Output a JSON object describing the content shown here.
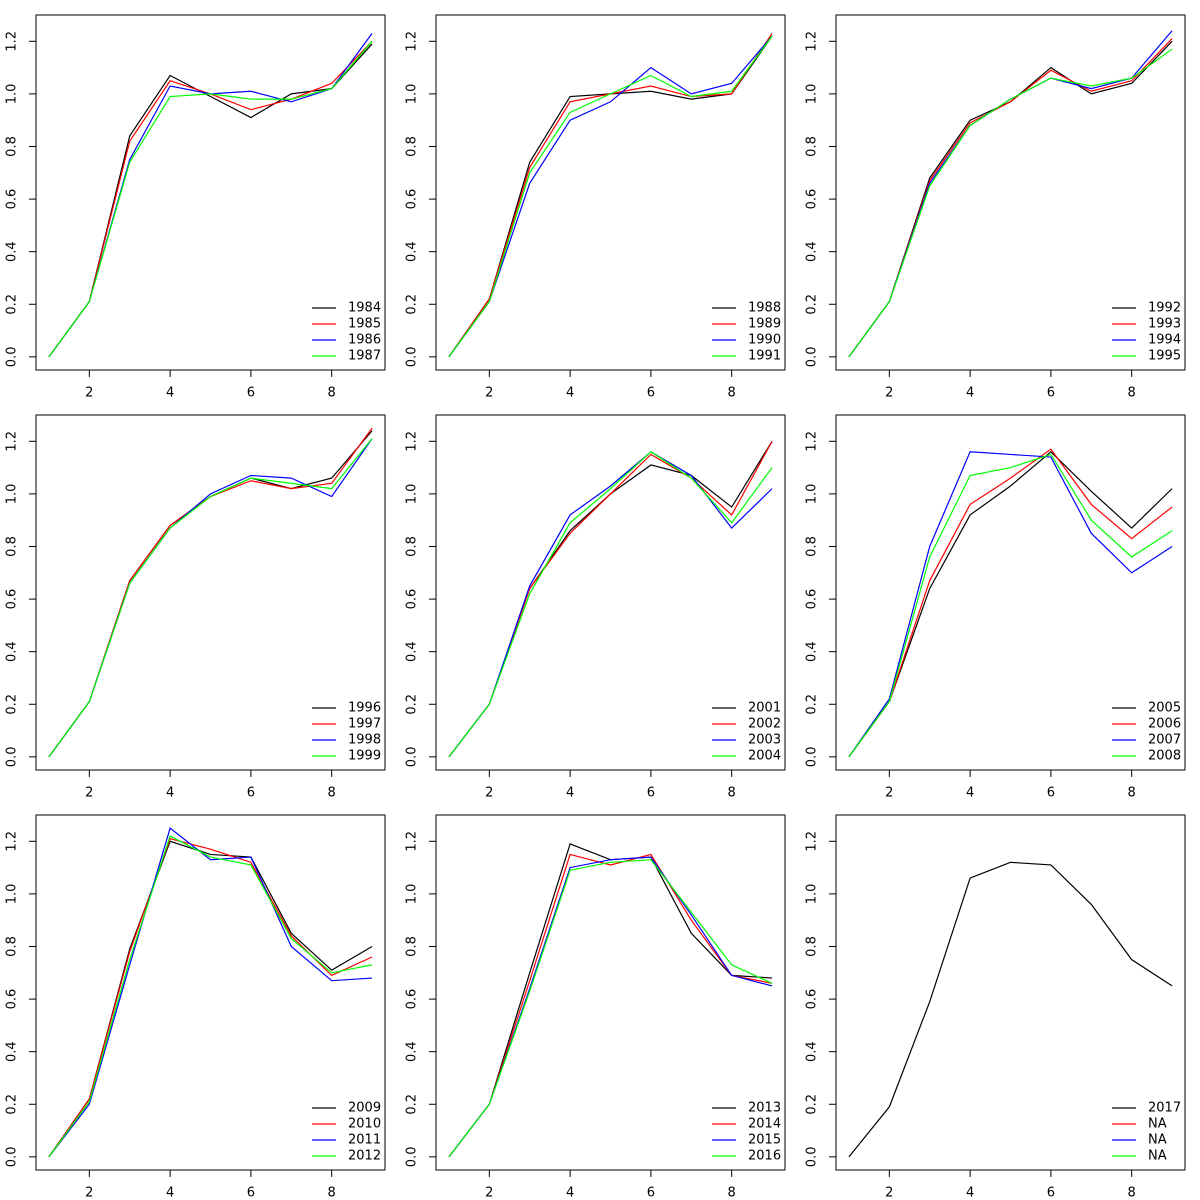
{
  "chart_data": [
    {
      "type": "line",
      "x": [
        1,
        2,
        3,
        4,
        5,
        6,
        7,
        8,
        9
      ],
      "xlim": [
        0.68,
        9.32
      ],
      "xticks": [
        2,
        4,
        6,
        8
      ],
      "ylim": [
        -0.05,
        1.3
      ],
      "yticks": [
        {
          "value": 0,
          "label": "0.0"
        },
        0.2,
        0.4,
        0.6,
        0.8,
        {
          "value": 1,
          "label": "1.0"
        },
        1.2
      ],
      "legend": "bottom-right",
      "series": [
        {
          "name": "1984",
          "color": "#000000",
          "values": [
            0,
            0.21,
            0.84,
            1.07,
            0.99,
            0.91,
            1.0,
            1.02,
            1.19
          ]
        },
        {
          "name": "1985",
          "color": "#ff0000",
          "values": [
            0,
            0.21,
            0.82,
            1.05,
            1.0,
            0.94,
            0.98,
            1.04,
            1.2
          ]
        },
        {
          "name": "1986",
          "color": "#0000ff",
          "values": [
            0,
            0.21,
            0.75,
            1.03,
            1.0,
            1.01,
            0.97,
            1.02,
            1.23
          ]
        },
        {
          "name": "1987",
          "color": "#00ff00",
          "values": [
            0,
            0.21,
            0.74,
            0.99,
            1.0,
            0.98,
            0.98,
            1.02,
            1.2
          ]
        }
      ]
    },
    {
      "type": "line",
      "x": [
        1,
        2,
        3,
        4,
        5,
        6,
        7,
        8,
        9
      ],
      "xlim": [
        0.68,
        9.32
      ],
      "xticks": [
        2,
        4,
        6,
        8
      ],
      "ylim": [
        -0.05,
        1.3
      ],
      "yticks": [
        {
          "value": 0,
          "label": "0.0"
        },
        0.2,
        0.4,
        0.6,
        0.8,
        {
          "value": 1,
          "label": "1.0"
        },
        1.2
      ],
      "legend": "bottom-right",
      "series": [
        {
          "name": "1988",
          "color": "#000000",
          "values": [
            0,
            0.22,
            0.74,
            0.99,
            1.0,
            1.01,
            0.98,
            1.0,
            1.22
          ]
        },
        {
          "name": "1989",
          "color": "#ff0000",
          "values": [
            0,
            0.22,
            0.72,
            0.97,
            1.0,
            1.03,
            0.99,
            1.0,
            1.23
          ]
        },
        {
          "name": "1990",
          "color": "#0000ff",
          "values": [
            0,
            0.21,
            0.66,
            0.9,
            0.97,
            1.1,
            1.0,
            1.04,
            1.22
          ]
        },
        {
          "name": "1991",
          "color": "#00ff00",
          "values": [
            0,
            0.21,
            0.7,
            0.93,
            1.0,
            1.07,
            0.99,
            1.01,
            1.22
          ]
        }
      ]
    },
    {
      "type": "line",
      "x": [
        1,
        2,
        3,
        4,
        5,
        6,
        7,
        8,
        9
      ],
      "xlim": [
        0.68,
        9.32
      ],
      "xticks": [
        2,
        4,
        6,
        8
      ],
      "ylim": [
        -0.05,
        1.3
      ],
      "yticks": [
        {
          "value": 0,
          "label": "0.0"
        },
        0.2,
        0.4,
        0.6,
        0.8,
        {
          "value": 1,
          "label": "1.0"
        },
        1.2
      ],
      "legend": "bottom-right",
      "series": [
        {
          "name": "1992",
          "color": "#000000",
          "values": [
            0,
            0.21,
            0.68,
            0.9,
            0.97,
            1.1,
            1.0,
            1.04,
            1.2
          ]
        },
        {
          "name": "1993",
          "color": "#ff0000",
          "values": [
            0,
            0.21,
            0.67,
            0.89,
            0.97,
            1.09,
            1.01,
            1.05,
            1.21
          ]
        },
        {
          "name": "1994",
          "color": "#0000ff",
          "values": [
            0,
            0.21,
            0.66,
            0.88,
            0.98,
            1.06,
            1.02,
            1.06,
            1.24
          ]
        },
        {
          "name": "1995",
          "color": "#00ff00",
          "values": [
            0,
            0.21,
            0.65,
            0.88,
            0.98,
            1.06,
            1.03,
            1.06,
            1.17
          ]
        }
      ]
    },
    {
      "type": "line",
      "x": [
        1,
        2,
        3,
        4,
        5,
        6,
        7,
        8,
        9
      ],
      "xlim": [
        0.68,
        9.32
      ],
      "xticks": [
        2,
        4,
        6,
        8
      ],
      "ylim": [
        -0.05,
        1.3
      ],
      "yticks": [
        {
          "value": 0,
          "label": "0.0"
        },
        0.2,
        0.4,
        0.6,
        0.8,
        {
          "value": 1,
          "label": "1.0"
        },
        1.2
      ],
      "legend": "bottom-right",
      "series": [
        {
          "name": "1996",
          "color": "#000000",
          "values": [
            0,
            0.21,
            0.67,
            0.88,
            0.99,
            1.06,
            1.02,
            1.06,
            1.24
          ]
        },
        {
          "name": "1997",
          "color": "#ff0000",
          "values": [
            0,
            0.21,
            0.67,
            0.88,
            0.99,
            1.05,
            1.02,
            1.04,
            1.25
          ]
        },
        {
          "name": "1998",
          "color": "#0000ff",
          "values": [
            0,
            0.21,
            0.66,
            0.87,
            1.0,
            1.07,
            1.06,
            0.99,
            1.21
          ]
        },
        {
          "name": "1999",
          "color": "#00ff00",
          "values": [
            0,
            0.21,
            0.66,
            0.87,
            0.99,
            1.06,
            1.04,
            1.02,
            1.21
          ]
        }
      ]
    },
    {
      "type": "line",
      "x": [
        1,
        2,
        3,
        4,
        5,
        6,
        7,
        8,
        9
      ],
      "xlim": [
        0.68,
        9.32
      ],
      "xticks": [
        2,
        4,
        6,
        8
      ],
      "ylim": [
        -0.05,
        1.3
      ],
      "yticks": [
        {
          "value": 0,
          "label": "0.0"
        },
        0.2,
        0.4,
        0.6,
        0.8,
        {
          "value": 1,
          "label": "1.0"
        },
        1.2
      ],
      "legend": "bottom-right",
      "series": [
        {
          "name": "2001",
          "color": "#000000",
          "values": [
            0,
            0.2,
            0.64,
            0.86,
            1.0,
            1.11,
            1.07,
            0.95,
            1.2
          ]
        },
        {
          "name": "2002",
          "color": "#ff0000",
          "values": [
            0,
            0.2,
            0.64,
            0.85,
            1.0,
            1.15,
            1.06,
            0.92,
            1.2
          ]
        },
        {
          "name": "2003",
          "color": "#0000ff",
          "values": [
            0,
            0.2,
            0.65,
            0.92,
            1.03,
            1.16,
            1.07,
            0.87,
            1.02
          ]
        },
        {
          "name": "2004",
          "color": "#00ff00",
          "values": [
            0,
            0.2,
            0.62,
            0.89,
            1.02,
            1.16,
            1.06,
            0.89,
            1.1
          ]
        }
      ]
    },
    {
      "type": "line",
      "x": [
        1,
        2,
        3,
        4,
        5,
        6,
        7,
        8,
        9
      ],
      "xlim": [
        0.68,
        9.32
      ],
      "xticks": [
        2,
        4,
        6,
        8
      ],
      "ylim": [
        -0.05,
        1.3
      ],
      "yticks": [
        {
          "value": 0,
          "label": "0.0"
        },
        0.2,
        0.4,
        0.6,
        0.8,
        {
          "value": 1,
          "label": "1.0"
        },
        1.2
      ],
      "legend": "bottom-right",
      "series": [
        {
          "name": "2005",
          "color": "#000000",
          "values": [
            0,
            0.21,
            0.64,
            0.92,
            1.03,
            1.16,
            1.01,
            0.87,
            1.02
          ]
        },
        {
          "name": "2006",
          "color": "#ff0000",
          "values": [
            0,
            0.21,
            0.67,
            0.96,
            1.06,
            1.17,
            0.96,
            0.83,
            0.95
          ]
        },
        {
          "name": "2007",
          "color": "#0000ff",
          "values": [
            0,
            0.22,
            0.8,
            1.16,
            1.15,
            1.14,
            0.85,
            0.7,
            0.8
          ]
        },
        {
          "name": "2008",
          "color": "#00ff00",
          "values": [
            0,
            0.21,
            0.76,
            1.07,
            1.1,
            1.15,
            0.9,
            0.76,
            0.86
          ]
        }
      ]
    },
    {
      "type": "line",
      "x": [
        1,
        2,
        3,
        4,
        5,
        6,
        7,
        8,
        9
      ],
      "xlim": [
        0.68,
        9.32
      ],
      "xticks": [
        2,
        4,
        6,
        8
      ],
      "ylim": [
        -0.05,
        1.3
      ],
      "yticks": [
        {
          "value": 0,
          "label": "0.0"
        },
        0.2,
        0.4,
        0.6,
        0.8,
        {
          "value": 1,
          "label": "1.0"
        },
        1.2
      ],
      "legend": "bottom-right",
      "series": [
        {
          "name": "2009",
          "color": "#000000",
          "values": [
            0,
            0.22,
            0.79,
            1.2,
            1.15,
            1.14,
            0.85,
            0.71,
            0.8
          ]
        },
        {
          "name": "2010",
          "color": "#ff0000",
          "values": [
            0,
            0.22,
            0.78,
            1.21,
            1.17,
            1.12,
            0.84,
            0.69,
            0.76
          ]
        },
        {
          "name": "2011",
          "color": "#0000ff",
          "values": [
            0,
            0.2,
            0.73,
            1.25,
            1.13,
            1.14,
            0.8,
            0.67,
            0.68
          ]
        },
        {
          "name": "2012",
          "color": "#00ff00",
          "values": [
            0,
            0.21,
            0.75,
            1.22,
            1.14,
            1.11,
            0.83,
            0.7,
            0.73
          ]
        }
      ]
    },
    {
      "type": "line",
      "x": [
        1,
        2,
        3,
        4,
        5,
        6,
        7,
        8,
        9
      ],
      "xlim": [
        0.68,
        9.32
      ],
      "xticks": [
        2,
        4,
        6,
        8
      ],
      "ylim": [
        -0.05,
        1.3
      ],
      "yticks": [
        {
          "value": 0,
          "label": "0.0"
        },
        0.2,
        0.4,
        0.6,
        0.8,
        {
          "value": 1,
          "label": "1.0"
        },
        1.2
      ],
      "legend": "bottom-right",
      "series": [
        {
          "name": "2013",
          "color": "#000000",
          "values": [
            0,
            0.2,
            0.7,
            1.19,
            1.13,
            1.14,
            0.85,
            0.69,
            0.68
          ]
        },
        {
          "name": "2014",
          "color": "#ff0000",
          "values": [
            0,
            0.2,
            0.67,
            1.15,
            1.11,
            1.15,
            0.9,
            0.69,
            0.66
          ]
        },
        {
          "name": "2015",
          "color": "#0000ff",
          "values": [
            0,
            0.2,
            0.64,
            1.1,
            1.13,
            1.14,
            0.92,
            0.69,
            0.65
          ]
        },
        {
          "name": "2016",
          "color": "#00ff00",
          "values": [
            0,
            0.2,
            0.63,
            1.09,
            1.12,
            1.13,
            0.93,
            0.73,
            0.66
          ]
        }
      ]
    },
    {
      "type": "line",
      "x": [
        1,
        2,
        3,
        4,
        5,
        6,
        7,
        8,
        9
      ],
      "xlim": [
        0.68,
        9.32
      ],
      "xticks": [
        2,
        4,
        6,
        8
      ],
      "ylim": [
        -0.05,
        1.3
      ],
      "yticks": [
        {
          "value": 0,
          "label": "0.0"
        },
        0.2,
        0.4,
        0.6,
        0.8,
        {
          "value": 1,
          "label": "1.0"
        },
        1.2
      ],
      "legend": "bottom-right",
      "series": [
        {
          "name": "2017",
          "color": "#000000",
          "values": [
            0,
            0.19,
            0.59,
            1.06,
            1.12,
            1.11,
            0.96,
            0.75,
            0.65
          ]
        },
        {
          "name": "NA",
          "color": "#ff0000",
          "values": [
            null,
            null,
            null,
            null,
            null,
            null,
            null,
            null,
            null
          ]
        },
        {
          "name": "NA",
          "color": "#0000ff",
          "values": [
            null,
            null,
            null,
            null,
            null,
            null,
            null,
            null,
            null
          ]
        },
        {
          "name": "NA",
          "color": "#00ff00",
          "values": [
            null,
            null,
            null,
            null,
            null,
            null,
            null,
            null,
            null
          ]
        }
      ]
    }
  ]
}
